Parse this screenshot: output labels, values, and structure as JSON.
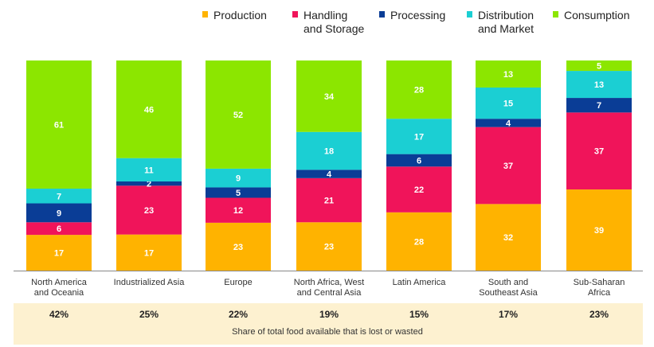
{
  "chart_data": {
    "type": "bar",
    "stacked": true,
    "categories": [
      [
        "North America",
        "and Oceania"
      ],
      [
        "Industrialized Asia"
      ],
      [
        "Europe"
      ],
      [
        "North Africa, West",
        "and Central Asia"
      ],
      [
        "Latin America"
      ],
      [
        "South and",
        "Southeast Asia"
      ],
      [
        "Sub-Saharan",
        "Africa"
      ]
    ],
    "series": [
      {
        "name": [
          "Production"
        ],
        "color": "#FFB300",
        "values": [
          17,
          17,
          23,
          23,
          28,
          32,
          39
        ]
      },
      {
        "name": [
          "Handling",
          "and Storage"
        ],
        "color": "#F0145A",
        "values": [
          6,
          23,
          12,
          21,
          22,
          37,
          37
        ]
      },
      {
        "name": [
          "Processing"
        ],
        "color": "#0A3D96",
        "values": [
          9,
          2,
          5,
          4,
          6,
          4,
          7
        ]
      },
      {
        "name": [
          "Distribution",
          "and Market"
        ],
        "color": "#1BCFD3",
        "values": [
          7,
          11,
          9,
          18,
          17,
          15,
          13
        ]
      },
      {
        "name": [
          "Consumption"
        ],
        "color": "#8CE600",
        "values": [
          61,
          46,
          52,
          34,
          28,
          13,
          5
        ]
      }
    ],
    "legend_position": "top-right",
    "share_lost_or_wasted": [
      "42%",
      "25%",
      "22%",
      "19%",
      "15%",
      "17%",
      "23%"
    ],
    "share_caption": "Share of total food available that is lost or wasted",
    "share_band_color": "#FDF1D0",
    "grid": false
  }
}
